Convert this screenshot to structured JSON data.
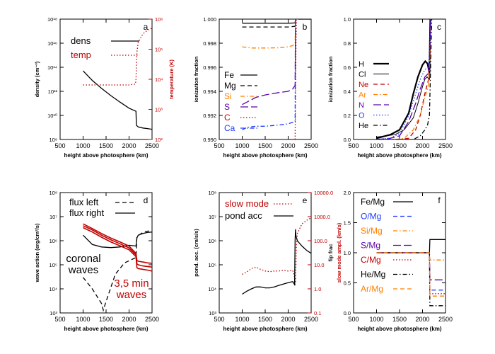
{
  "colors": {
    "black": "#000000",
    "red": "#c00000",
    "orange": "#ff7f00",
    "purple": "#5a00a8",
    "blue": "#1e3cff",
    "gray": "#888888"
  },
  "chart_data": [
    {
      "panel": "a",
      "type": "line",
      "xlabel": "height above photosphere (km)",
      "ylabel_left": "density (cm⁻³)",
      "ylabel_right": "temperature (K)",
      "xlim": [
        500,
        2500
      ],
      "x_ticks": [
        "500",
        "1000",
        "1500",
        "2000",
        "2500"
      ],
      "y_scale": "log",
      "ylim_left": [
        100000000.0,
        1e+18
      ],
      "y_left_ticks": [
        "10⁸",
        "10¹⁰",
        "10¹²",
        "10¹⁴",
        "10¹⁶",
        "10¹⁸"
      ],
      "ylim_right": [
        100,
        1000000.0
      ],
      "y_right_ticks": [
        "10²",
        "10³",
        "10⁴",
        "10⁵",
        "10⁶"
      ],
      "series": [
        {
          "name": "dens",
          "axis": "left",
          "color": "black",
          "dash": "solid",
          "x": [
            1000,
            1200,
            1400,
            1600,
            1800,
            2000,
            2150,
            2160,
            2200,
            2300,
            2400,
            2500
          ],
          "y": [
            50000000000000.0,
            8000000000000.0,
            1800000000000.0,
            450000000000.0,
            130000000000.0,
            40000000000.0,
            22000000000.0,
            1500000000.0,
            1100000000.0,
            900000000.0,
            800000000.0,
            700000000.0
          ]
        },
        {
          "name": "temp",
          "axis": "right",
          "color": "red",
          "dash": "dot",
          "x": [
            1000,
            1500,
            2000,
            2140,
            2150,
            2160,
            2170,
            2200,
            2300,
            2400,
            2500
          ],
          "y": [
            6500,
            6500,
            6500,
            7000,
            10000.0,
            30000.0,
            80000.0,
            170000.0,
            320000.0,
            430000.0,
            500000.0
          ]
        }
      ],
      "label": "a"
    },
    {
      "panel": "b",
      "type": "line",
      "xlabel": "height above photosphere (km)",
      "ylabel": "ionization fraction",
      "xlim": [
        500,
        2500
      ],
      "x_ticks": [
        "500",
        "1000",
        "1500",
        "2000",
        "2500"
      ],
      "ylim": [
        0.99,
        1.0
      ],
      "y_ticks": [
        "0.990",
        "0.992",
        "0.994",
        "0.996",
        "0.998",
        "1.000"
      ],
      "series": [
        {
          "name": "Fe",
          "color": "black",
          "dash": "solid",
          "x": [
            1000,
            1500,
            2000,
            2150,
            2160,
            2500
          ],
          "y": [
            0.99965,
            0.99965,
            0.99965,
            0.99968,
            1.0,
            1.0
          ]
        },
        {
          "name": "Mg",
          "color": "black",
          "dash": "dash",
          "x": [
            1000,
            1500,
            2000,
            2150,
            2160,
            2500
          ],
          "y": [
            0.99935,
            0.99935,
            0.99935,
            0.9994,
            1.0,
            1.0
          ]
        },
        {
          "name": "Si",
          "color": "orange",
          "dash": "dashdot",
          "x": [
            1000,
            1200,
            1500,
            1800,
            2000,
            2100,
            2150,
            2160,
            2500
          ],
          "y": [
            0.9977,
            0.9976,
            0.9976,
            0.99762,
            0.9977,
            0.9978,
            0.998,
            1.0,
            1.0
          ]
        },
        {
          "name": "S",
          "color": "purple",
          "dash": "longdash",
          "x": [
            1000,
            1100,
            1300,
            1500,
            1800,
            2000,
            2100,
            2150,
            2160,
            2500
          ],
          "y": [
            0.9929,
            0.9931,
            0.9935,
            0.9937,
            0.9939,
            0.994,
            0.9942,
            0.9945,
            1.0,
            1.0
          ]
        },
        {
          "name": "C",
          "color": "red",
          "dash": "dot",
          "x": [
            2150,
            2160,
            2170,
            2180,
            2500
          ],
          "y": [
            0.99,
            0.993,
            0.998,
            1.0,
            1.0
          ]
        },
        {
          "name": "Ca",
          "color": "blue",
          "dash": "dashdot",
          "x": [
            1000,
            1100,
            1300,
            1500,
            1800,
            2000,
            2150,
            2160,
            2500
          ],
          "y": [
            0.9908,
            0.991,
            0.9911,
            0.9911,
            0.9912,
            0.9913,
            0.9915,
            1.0,
            1.0
          ]
        }
      ],
      "label": "b"
    },
    {
      "panel": "c",
      "type": "line",
      "xlabel": "height above photosphere (km)",
      "ylabel": "ionization fraction",
      "xlim": [
        500,
        2500
      ],
      "x_ticks": [
        "500",
        "1000",
        "1500",
        "2000",
        "2500"
      ],
      "ylim": [
        0.0,
        1.0
      ],
      "y_ticks": [
        "0.0",
        "0.2",
        "0.4",
        "0.6",
        "0.8",
        "1.0"
      ],
      "series": [
        {
          "name": "H",
          "color": "black",
          "dash": "solid",
          "width": 2.2,
          "x": [
            1000,
            1300,
            1500,
            1700,
            1800,
            1900,
            2000,
            2060,
            2110,
            2150,
            2160,
            2170,
            2200
          ],
          "y": [
            0.01,
            0.04,
            0.08,
            0.22,
            0.38,
            0.52,
            0.62,
            0.65,
            0.63,
            0.55,
            0.8,
            1.0,
            1.0
          ]
        },
        {
          "name": "Cl",
          "color": "black",
          "dash": "solid",
          "width": 1,
          "x": [
            1000,
            1200,
            1400,
            1600,
            1800,
            1900,
            2000,
            2050,
            2100,
            2150,
            2160,
            2170
          ],
          "y": [
            0.02,
            0.03,
            0.04,
            0.08,
            0.18,
            0.3,
            0.44,
            0.5,
            0.52,
            0.5,
            0.8,
            1.0
          ]
        },
        {
          "name": "Ne",
          "color": "red",
          "dash": "dash",
          "x": [
            1000,
            1500,
            1700,
            1850,
            1950,
            2050,
            2130,
            2160,
            2180
          ],
          "y": [
            0.0,
            0.0,
            0.01,
            0.08,
            0.2,
            0.38,
            0.5,
            0.7,
            1.0
          ]
        },
        {
          "name": "Ar",
          "color": "orange",
          "dash": "dashdot",
          "x": [
            1000,
            1400,
            1600,
            1800,
            1950,
            2050,
            2130,
            2160,
            2180
          ],
          "y": [
            0.0,
            0.0,
            0.01,
            0.08,
            0.2,
            0.35,
            0.45,
            0.7,
            1.0
          ]
        },
        {
          "name": "N",
          "color": "purple",
          "dash": "longdash",
          "x": [
            1000,
            1300,
            1500,
            1700,
            1850,
            1950,
            2050,
            2130,
            2160,
            2180
          ],
          "y": [
            0.0,
            0.01,
            0.03,
            0.15,
            0.3,
            0.42,
            0.52,
            0.55,
            0.75,
            1.0
          ]
        },
        {
          "name": "O",
          "color": "blue",
          "dash": "dot",
          "x": [
            1000,
            1300,
            1500,
            1700,
            1850,
            1950,
            2050,
            2130,
            2160,
            2180
          ],
          "y": [
            0.0,
            0.01,
            0.05,
            0.2,
            0.38,
            0.5,
            0.58,
            0.6,
            0.8,
            1.0
          ]
        },
        {
          "name": "He",
          "color": "black",
          "dash": "dashdot",
          "x": [
            1000,
            1500,
            1800,
            1950,
            2050,
            2110,
            2150,
            2170,
            2200
          ],
          "y": [
            0.0,
            0.0,
            0.0,
            0.03,
            0.08,
            0.12,
            0.2,
            0.5,
            1.0
          ]
        }
      ],
      "label": "c"
    },
    {
      "panel": "d",
      "type": "line",
      "xlabel": "height above photosphere (km)",
      "ylabel": "wave action (erg/cm²/s)",
      "xlim": [
        500,
        2500
      ],
      "x_ticks": [
        "500",
        "1000",
        "1500",
        "2000",
        "2500"
      ],
      "y_scale": "log",
      "ylim": [
        1000,
        100000000.0
      ],
      "y_ticks": [
        "10³",
        "10⁴",
        "10⁵",
        "10⁶",
        "10⁷",
        "10⁸"
      ],
      "series": [
        {
          "name": "flux left",
          "color": "black",
          "dash": "dash",
          "x": [
            1000,
            1200,
            1400,
            1440,
            1500,
            1700,
            1900,
            2150,
            2170,
            2300,
            2400,
            2500
          ],
          "y": [
            30000.0,
            10000.0,
            2500,
            1300,
            3000,
            40000.0,
            120000.0,
            200000.0,
            1500000.0,
            2200000.0,
            2500000.0,
            2600000.0
          ]
        },
        {
          "name": "flux right",
          "color": "black",
          "dash": "solid",
          "x": [
            1000,
            1200,
            1400,
            1600,
            1800,
            2000,
            2150,
            2170,
            2200,
            2300,
            2400,
            2500
          ],
          "y": [
            1700000.0,
            700000.0,
            550000.0,
            520000.0,
            550000.0,
            650000.0,
            600000.0,
            1300000.0,
            1700000.0,
            2000000.0,
            2200000.0,
            2300000.0
          ]
        },
        {
          "name": "",
          "color": "red",
          "dash": "solid",
          "x": [
            1000,
            1200,
            1400,
            1600,
            1800,
            2000,
            2150,
            2170,
            2200,
            2300,
            2400,
            2500
          ],
          "y": [
            5000000.0,
            3200000.0,
            2000000.0,
            1300000.0,
            900000.0,
            600000.0,
            300000.0,
            150000.0,
            140000.0,
            130000.0,
            120000.0,
            115000.0
          ]
        },
        {
          "name": "",
          "color": "red",
          "dash": "solid",
          "x": [
            1000,
            1200,
            1400,
            1600,
            1800,
            2000,
            2150,
            2170,
            2200,
            2300,
            2400,
            2500
          ],
          "y": [
            4200000.0,
            2800000.0,
            1700000.0,
            1100000.0,
            750000.0,
            500000.0,
            260000.0,
            110000.0,
            100000.0,
            90000.0,
            85000.0,
            80000.0
          ]
        },
        {
          "name": "",
          "color": "red",
          "dash": "solid",
          "x": [
            1000,
            1200,
            1400,
            1600,
            1800,
            2000,
            2150,
            2170,
            2200,
            2300,
            2400,
            2500
          ],
          "y": [
            3500000.0,
            2300000.0,
            1400000.0,
            900000.0,
            620000.0,
            420000.0,
            220000.0,
            75000.0,
            70000.0,
            65000.0,
            60000.0,
            55000.0
          ]
        }
      ],
      "legend": [
        "flux left",
        "flux right"
      ],
      "annotations": [
        {
          "text": "coronal",
          "color": "black"
        },
        {
          "text": "waves",
          "color": "black"
        },
        {
          "text": "3,5 min",
          "color": "red"
        },
        {
          "text": "waves",
          "color": "red"
        }
      ],
      "label": "d"
    },
    {
      "panel": "e",
      "type": "line",
      "xlabel": "height above photosphere (km)",
      "ylabel_left": "pond. acc. (cm/s/s)",
      "ylabel_right": "slow mode ampl. (km/s)",
      "xlim": [
        500,
        2500
      ],
      "x_ticks": [
        "500",
        "1000",
        "1500",
        "2000",
        "2500"
      ],
      "y_scale": "log",
      "ylim_left": [
        1000,
        100000000.0
      ],
      "y_left_ticks": [
        "10³",
        "10⁴",
        "10⁵",
        "10⁶",
        "10⁷",
        "10⁸"
      ],
      "ylim_right": [
        0.1,
        10000
      ],
      "y_right_ticks": [
        "0.1",
        "1.0",
        "10.0",
        "100.0",
        "1000.0",
        "10000.0"
      ],
      "series": [
        {
          "name": "slow mode",
          "axis": "right",
          "color": "red",
          "dash": "dot",
          "x": [
            1000,
            1100,
            1200,
            1300,
            1400,
            1500,
            1600,
            1700,
            1800,
            1900,
            2000,
            2100,
            2140,
            2150,
            2160,
            2180,
            2200,
            2300,
            2400,
            2500
          ],
          "y": [
            4,
            5,
            7,
            8,
            6.5,
            5.5,
            5.2,
            5.5,
            5.5,
            6,
            5.5,
            5.8,
            3,
            1.5,
            2,
            60,
            200,
            500,
            700,
            900
          ]
        },
        {
          "name": "pond acc",
          "axis": "left",
          "color": "black",
          "dash": "solid",
          "x": [
            1000,
            1100,
            1200,
            1300,
            1400,
            1500,
            1600,
            1700,
            1800,
            1900,
            2000,
            2100,
            2140,
            2150,
            2160,
            2170,
            2200,
            2300,
            2400,
            2500
          ],
          "y": [
            6000,
            8000,
            10000.0,
            12000.0,
            12000.0,
            11000.0,
            11000.0,
            12000.0,
            14000.0,
            16000.0,
            18000.0,
            20000.0,
            15000.0,
            1000000.0,
            3000000.0,
            1500000.0,
            1000000.0,
            600000.0,
            400000.0,
            300000.0
          ]
        }
      ],
      "label": "e"
    },
    {
      "panel": "f",
      "type": "line",
      "xlabel": "height above photosphere (km)",
      "ylabel": "fip frac",
      "xlim": [
        500,
        2500
      ],
      "x_ticks": [
        "500",
        "1000",
        "1500",
        "2000",
        "2500"
      ],
      "ylim": [
        0.0,
        2.0
      ],
      "y_ticks": [
        "0.0",
        "0.5",
        "1.0",
        "1.5",
        "2.0"
      ],
      "series": [
        {
          "name": "Fe/Mg",
          "color": "black",
          "dash": "solid",
          "x": [
            1000,
            2150,
            2160,
            2500
          ],
          "y": [
            1.0,
            1.0,
            1.22,
            1.22
          ]
        },
        {
          "name": "O/Mg",
          "color": "blue",
          "dash": "dash",
          "x": [
            1000,
            2150,
            2160,
            2500
          ],
          "y": [
            1.0,
            1.0,
            0.38,
            0.38
          ]
        },
        {
          "name": "Si/Mg",
          "color": "orange",
          "dash": "dashdot",
          "x": [
            1000,
            2150,
            2160,
            2500
          ],
          "y": [
            1.0,
            1.0,
            0.88,
            0.88
          ]
        },
        {
          "name": "S/Mg",
          "color": "purple",
          "dash": "longdash",
          "x": [
            1000,
            2150,
            2160,
            2500
          ],
          "y": [
            1.0,
            1.0,
            0.55,
            0.55
          ]
        },
        {
          "name": "C/Mg",
          "color": "red",
          "dash": "dot",
          "x": [
            1000,
            2150,
            2160,
            2500
          ],
          "y": [
            1.0,
            1.0,
            0.32,
            0.32
          ]
        },
        {
          "name": "He/Mg",
          "color": "black",
          "dash": "dashdot",
          "x": [
            1000,
            2150,
            2160,
            2500
          ],
          "y": [
            1.0,
            1.0,
            0.12,
            0.12
          ]
        },
        {
          "name": "Ar/Mg",
          "color": "orange",
          "dash": "dash",
          "x": [
            1000,
            2150,
            2160,
            2500
          ],
          "y": [
            1.0,
            1.0,
            0.28,
            0.28
          ]
        }
      ],
      "label": "f"
    }
  ]
}
